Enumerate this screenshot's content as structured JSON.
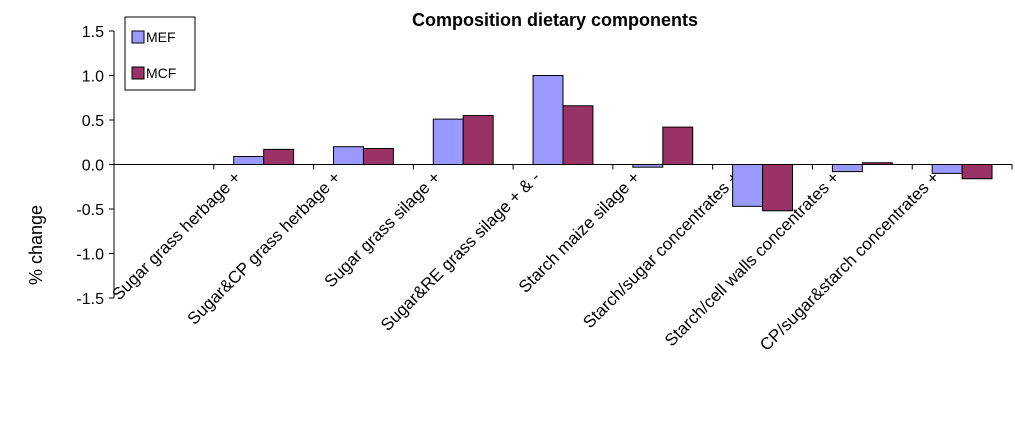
{
  "chart_data": {
    "type": "bar",
    "title": "Composition dietary components",
    "y_label": "% change",
    "categories": [
      null,
      "Sugar grass herbage +",
      "Sugar&CP grass herbage +",
      "Sugar grass silage +",
      "Sugar&RE grass silage + & -",
      "Starch maize silage +",
      "Starch/sugar concentrates +",
      "Starch/cell walls concentrates +",
      "CP/sugar&starch concentrates +"
    ],
    "series": [
      {
        "name": "MEF",
        "color": "#9999ff",
        "values": [
          null,
          0.09,
          0.2,
          0.51,
          1.0,
          -0.03,
          -0.47,
          -0.08,
          -0.1
        ]
      },
      {
        "name": "MCF",
        "color": "#993366",
        "values": [
          null,
          0.17,
          0.18,
          0.55,
          0.66,
          0.42,
          -0.52,
          0.02,
          -0.16
        ]
      }
    ],
    "ylim": [
      -1.5,
      1.5
    ],
    "yticks": [
      1.5,
      {
        "value": 1,
        "label": "1.0"
      },
      0.5,
      {
        "value": 0,
        "label": "0.0"
      },
      -0.5,
      {
        "value": -1,
        "label": "-1.0"
      },
      -1.5
    ],
    "legend": "top-left"
  }
}
